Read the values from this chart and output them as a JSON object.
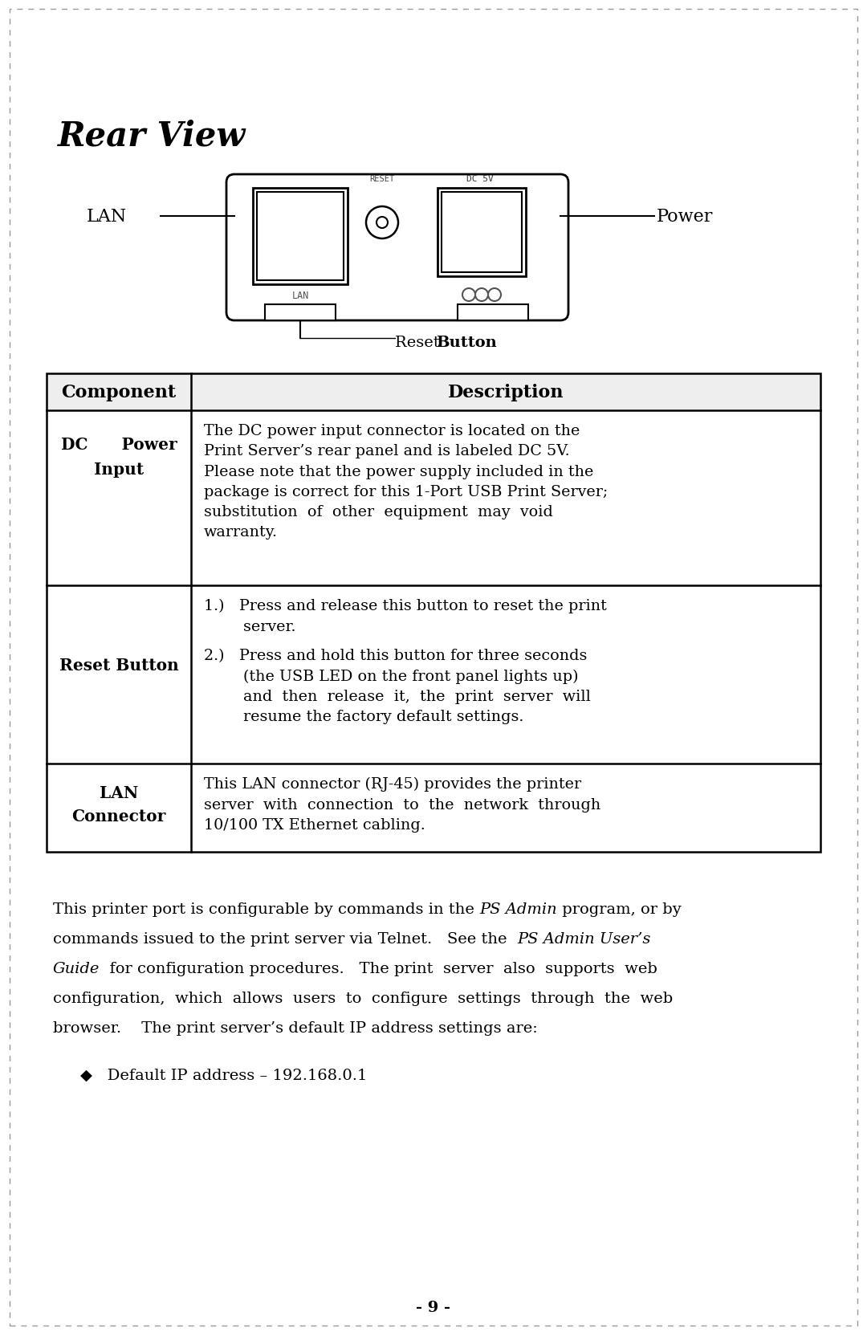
{
  "title": "Rear View",
  "bg_color": "#ffffff",
  "page_number": "- 9 -",
  "diagram": {
    "lan_label": "LAN",
    "power_label": "Power",
    "reset_label": "Reset Button",
    "dc5v_label": "DC 5V"
  },
  "table": {
    "headers": [
      "Component",
      "Description"
    ],
    "row1_component_line1": "DC      Power",
    "row1_component_line2": "Input",
    "row1_desc": "The DC power input connector is located on the\nPrint Server’s rear panel and is labeled DC 5V.\nPlease note that the power supply included in the\npackage is correct for this 1-Port USB Print Server;\nsubstitution  of  other  equipment  may  void\nwarranty.",
    "row2_component": "Reset Button",
    "row2_desc_a": "1.)   Press and release this button to reset the print\n        server.",
    "row2_desc_b": "2.)   Press and hold this button for three seconds\n        (the USB LED on the front panel lights up)\n        and  then  release  it,  the  print  server  will\n        resume the factory default settings.",
    "row3_component_line1": "LAN",
    "row3_component_line2": "Connector",
    "row3_desc": "This LAN connector (RJ-45) provides the printer\nserver  with  connection  to  the  network  through\n10/100 TX Ethernet cabling."
  },
  "body_lines": [
    [
      [
        "This printer port is configurable by commands in the ",
        false
      ],
      [
        "PS Admin",
        true
      ],
      [
        " program, or by",
        false
      ]
    ],
    [
      [
        "commands issued to the print server via Telnet.   See the  ",
        false
      ],
      [
        "PS Admin User’s",
        true
      ]
    ],
    [
      [
        "Guide",
        true
      ],
      [
        "  for configuration procedures.   The print  server  also  supports  web",
        false
      ]
    ],
    [
      [
        "configuration,  which  allows  users  to  configure  settings  through  the  web",
        false
      ]
    ],
    [
      [
        "browser.    The print server’s default IP address settings are:",
        false
      ]
    ]
  ],
  "bullet": "◆   Default IP address – 192.168.0.1"
}
